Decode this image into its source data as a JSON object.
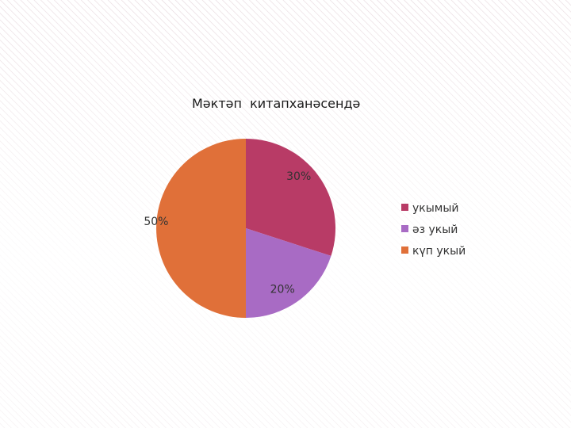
{
  "chart_data": {
    "type": "pie",
    "title": "Мәктәп  китапханәсендә",
    "categories": [
      "укымый",
      "әз укый",
      "күп укый"
    ],
    "values": [
      30,
      20,
      50
    ],
    "unit": "%",
    "data_labels": [
      "30%",
      "20%",
      "50%"
    ],
    "colors": [
      "#b83b66",
      "#a86bc4",
      "#e07039"
    ],
    "legend_position": "right",
    "start_angle_deg": 0,
    "direction": "clockwise"
  },
  "background": {
    "base_color": "#ffffff",
    "stripe_color": "#e6d6dc"
  }
}
